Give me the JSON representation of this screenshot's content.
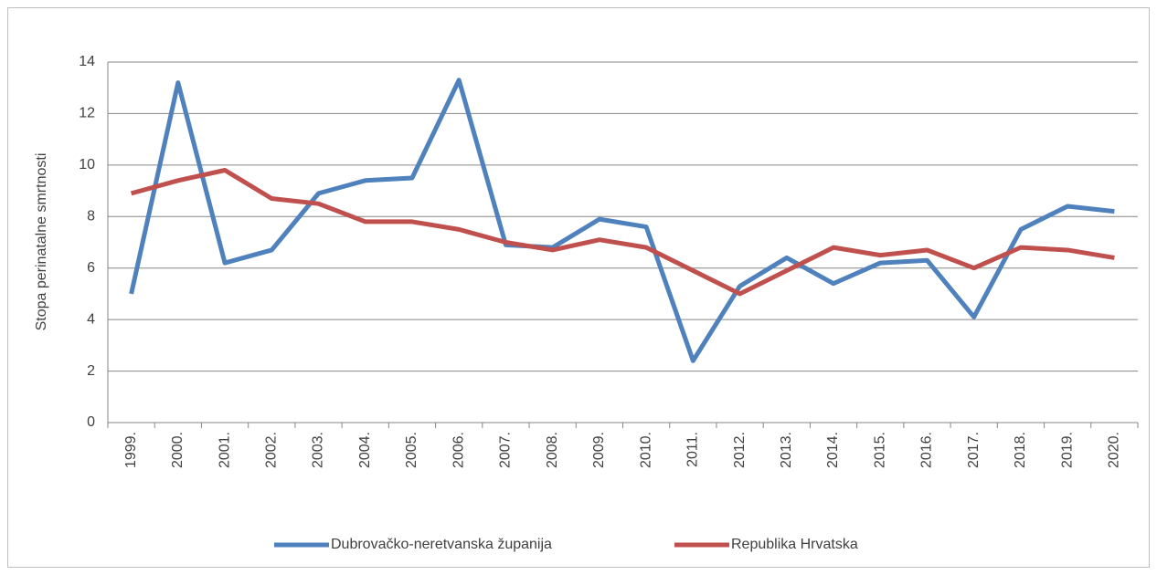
{
  "chart_data": {
    "type": "line",
    "y_label": "Stopa perinatalne smrtnosti",
    "categories": [
      "1999.",
      "2000.",
      "2001.",
      "2002.",
      "2003.",
      "2004.",
      "2005.",
      "2006.",
      "2007.",
      "2008.",
      "2009.",
      "2010.",
      "2011.",
      "2012.",
      "2013.",
      "2014.",
      "2015.",
      "2016.",
      "2017.",
      "2018.",
      "2019.",
      "2020."
    ],
    "series": [
      {
        "name": "Dubrovačko-neretvanska županija",
        "color": "#4f81bd",
        "values": [
          5.0,
          13.2,
          6.2,
          6.7,
          8.9,
          9.4,
          9.5,
          13.3,
          6.9,
          6.8,
          7.9,
          7.6,
          2.4,
          5.3,
          6.4,
          5.4,
          6.2,
          6.3,
          4.1,
          7.5,
          8.4,
          8.2
        ]
      },
      {
        "name": "Republika Hrvatska",
        "color": "#c0504d",
        "values": [
          8.9,
          9.4,
          9.8,
          8.7,
          8.5,
          7.8,
          7.8,
          7.5,
          7.0,
          6.7,
          7.1,
          6.8,
          5.9,
          5.0,
          5.9,
          6.8,
          6.5,
          6.7,
          6.0,
          6.8,
          6.7,
          6.4
        ]
      }
    ],
    "ylim": [
      0,
      14
    ],
    "yticks": [
      0,
      2,
      4,
      6,
      8,
      10,
      12,
      14
    ],
    "grid": true,
    "legend": "bottom"
  }
}
